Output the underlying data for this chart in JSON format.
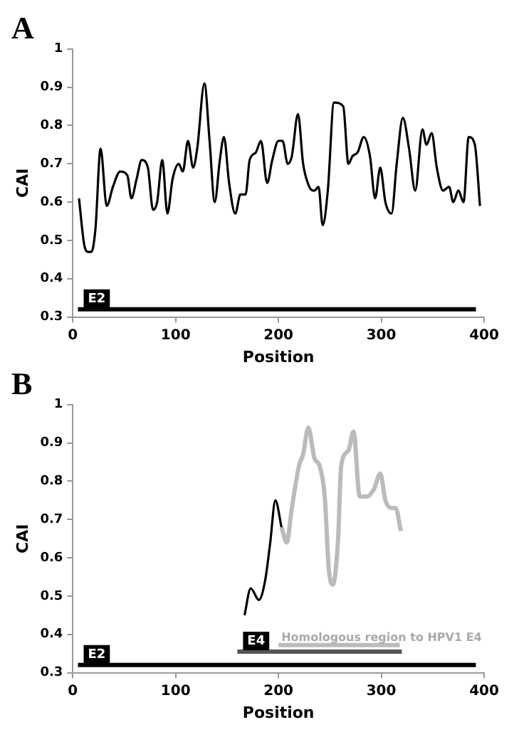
{
  "chart_data": [
    {
      "type": "line",
      "title": "A",
      "xlabel": "Position",
      "ylabel": "CAI",
      "xlim": [
        0,
        400
      ],
      "xticks": [
        0,
        100,
        200,
        300,
        400
      ],
      "ylim": [
        0.3,
        1
      ],
      "yticks": [
        0.3,
        0.4,
        0.5,
        0.6,
        0.7,
        0.8,
        0.9,
        1
      ],
      "grid": false,
      "legend": false,
      "marker": "none",
      "series": [
        {
          "color": "#000000",
          "x": [
            6,
            11,
            15,
            18,
            22,
            27,
            33,
            39,
            46,
            53,
            57,
            62,
            67,
            73,
            78,
            82,
            87,
            92,
            97,
            103,
            107,
            112,
            117,
            121,
            128,
            133,
            138,
            143,
            147,
            152,
            158,
            163,
            168,
            172,
            178,
            183,
            189,
            194,
            200,
            204,
            209,
            213,
            219,
            224,
            230,
            235,
            239,
            243,
            248,
            254,
            263,
            268,
            272,
            277,
            283,
            289,
            294,
            299,
            304,
            310,
            315,
            321,
            327,
            333,
            340,
            344,
            349,
            354,
            360,
            366,
            370,
            375,
            380,
            385,
            391,
            396
          ],
          "values": [
            0.61,
            0.49,
            0.47,
            0.47,
            0.53,
            0.74,
            0.59,
            0.64,
            0.68,
            0.67,
            0.61,
            0.66,
            0.71,
            0.69,
            0.58,
            0.6,
            0.71,
            0.57,
            0.66,
            0.7,
            0.68,
            0.76,
            0.69,
            0.74,
            0.91,
            0.76,
            0.6,
            0.71,
            0.77,
            0.65,
            0.57,
            0.62,
            0.62,
            0.71,
            0.73,
            0.76,
            0.65,
            0.71,
            0.76,
            0.76,
            0.7,
            0.72,
            0.83,
            0.7,
            0.64,
            0.63,
            0.64,
            0.54,
            0.63,
            0.86,
            0.85,
            0.7,
            0.72,
            0.73,
            0.77,
            0.72,
            0.61,
            0.69,
            0.6,
            0.57,
            0.7,
            0.82,
            0.74,
            0.63,
            0.79,
            0.75,
            0.78,
            0.69,
            0.63,
            0.64,
            0.6,
            0.63,
            0.6,
            0.77,
            0.75,
            0.59
          ]
        },
        {
          "name": "E2",
          "color": "#000000",
          "x": [
            5,
            392
          ],
          "values": [
            0.32,
            0.32
          ]
        }
      ]
    },
    {
      "type": "line",
      "title": "B",
      "xlabel": "Position",
      "ylabel": "CAI",
      "xlim": [
        0,
        400
      ],
      "xticks": [
        0,
        100,
        200,
        300,
        400
      ],
      "ylim": [
        0.3,
        1
      ],
      "yticks": [
        0.3,
        0.4,
        0.5,
        0.6,
        0.7,
        0.8,
        0.9,
        1
      ],
      "grid": false,
      "legend": false,
      "marker": "none",
      "annotations": [
        {
          "text": "Homologous region to HPV1 E4",
          "x": 200,
          "y": 0.375
        }
      ],
      "series": [
        {
          "color": "#000000",
          "x": [
            167,
            173,
            181,
            187,
            192,
            197,
            203
          ],
          "values": [
            0.45,
            0.52,
            0.49,
            0.54,
            0.64,
            0.75,
            0.68
          ]
        },
        {
          "color": "#bbbbbb",
          "x": [
            203,
            208,
            213,
            220,
            224,
            229,
            235,
            240,
            245,
            249,
            253,
            258,
            261,
            268,
            273,
            279,
            286,
            293,
            299,
            304,
            310,
            314,
            319
          ],
          "values": [
            0.68,
            0.64,
            0.73,
            0.84,
            0.87,
            0.94,
            0.86,
            0.84,
            0.76,
            0.57,
            0.53,
            0.65,
            0.84,
            0.88,
            0.93,
            0.76,
            0.76,
            0.78,
            0.82,
            0.75,
            0.73,
            0.73,
            0.67
          ]
        },
        {
          "name": "E2",
          "color": "#000000",
          "x": [
            5,
            392
          ],
          "values": [
            0.32,
            0.32
          ]
        },
        {
          "name": "E4",
          "color": "#555555",
          "x": [
            160,
            320
          ],
          "values": [
            0.355,
            0.355
          ]
        },
        {
          "color": "#bbbbbb",
          "x": [
            200,
            318
          ],
          "values": [
            0.372,
            0.372
          ]
        }
      ]
    }
  ]
}
